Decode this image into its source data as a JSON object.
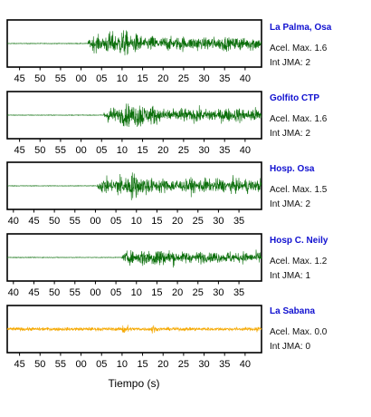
{
  "chart_data": {
    "type": "line",
    "xlabel": "Tiempo (s)",
    "panels": [
      {
        "station": "La Palma, Osa",
        "accel_label": "Acel. Max. 1.6",
        "jma_label": "Int JMA: 2",
        "color": "#0a6e0a",
        "x_start": 42,
        "x_span": 62,
        "tick_labels": [
          "45",
          "50",
          "55",
          "00",
          "05",
          "10",
          "15",
          "20",
          "25",
          "30",
          "35",
          "40"
        ],
        "tick_offsets": [
          3,
          8,
          13,
          18,
          23,
          28,
          33,
          38,
          43,
          48,
          53,
          58
        ],
        "signal_onset": 19.7,
        "signal_amplitude": 1.0
      },
      {
        "station": "Golfito CTP",
        "accel_label": "Acel. Max. 1.6",
        "jma_label": "Int JMA: 2",
        "color": "#0a6e0a",
        "x_start": 42,
        "x_span": 62,
        "tick_labels": [
          "45",
          "50",
          "55",
          "00",
          "05",
          "10",
          "15",
          "20",
          "25",
          "30",
          "35",
          "40"
        ],
        "tick_offsets": [
          3,
          8,
          13,
          18,
          23,
          28,
          33,
          38,
          43,
          48,
          53,
          58
        ],
        "signal_onset": 23.5,
        "signal_amplitude": 1.0
      },
      {
        "station": "Hosp. Osa",
        "accel_label": "Acel. Max. 1.5",
        "jma_label": "Int JMA: 2",
        "color": "#0a6e0a",
        "x_start": 38.5,
        "x_span": 62,
        "tick_labels": [
          "40",
          "45",
          "50",
          "55",
          "00",
          "05",
          "10",
          "15",
          "20",
          "25",
          "30",
          "35"
        ],
        "tick_offsets": [
          1.5,
          6.5,
          11.5,
          16.5,
          21.5,
          26.5,
          31.5,
          36.5,
          41.5,
          46.5,
          51.5,
          56.5
        ],
        "signal_onset": 22.0,
        "signal_amplitude": 1.0
      },
      {
        "station": "Hosp C. Neily",
        "accel_label": "Acel. Max. 1.2",
        "jma_label": "Int JMA: 1",
        "color": "#0a6e0a",
        "x_start": 38.5,
        "x_span": 62,
        "tick_labels": [
          "40",
          "45",
          "50",
          "55",
          "00",
          "05",
          "10",
          "15",
          "20",
          "25",
          "30",
          "35"
        ],
        "tick_offsets": [
          1.5,
          6.5,
          11.5,
          16.5,
          21.5,
          26.5,
          31.5,
          36.5,
          41.5,
          46.5,
          51.5,
          56.5
        ],
        "signal_onset": 28.0,
        "signal_amplitude": 0.8
      },
      {
        "station": "La Sabana",
        "accel_label": "Acel. Max. 0.0",
        "jma_label": "Int JMA: 0",
        "color": "#f5a800",
        "x_start": 42,
        "x_span": 62,
        "tick_labels": [
          "45",
          "50",
          "55",
          "00",
          "05",
          "10",
          "15",
          "20",
          "25",
          "30",
          "35",
          "40"
        ],
        "tick_offsets": [
          3,
          8,
          13,
          18,
          23,
          28,
          33,
          38,
          43,
          48,
          53,
          58
        ],
        "signal_onset": 0,
        "signal_amplitude": 0.35
      }
    ]
  }
}
